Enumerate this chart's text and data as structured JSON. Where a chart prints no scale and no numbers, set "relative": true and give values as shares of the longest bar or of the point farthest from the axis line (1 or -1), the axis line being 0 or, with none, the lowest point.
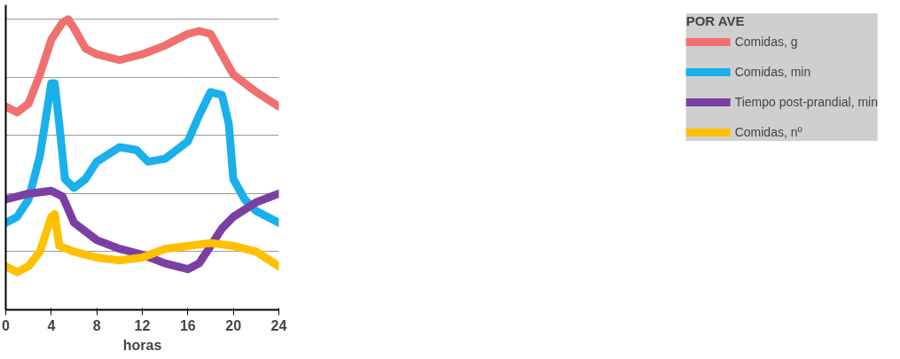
{
  "chart_data": {
    "type": "line",
    "relative": true,
    "legend_title": "POR AVE",
    "xlabel": "horas",
    "x": [
      0,
      1,
      2,
      3,
      4,
      5,
      5.5,
      6,
      7,
      8,
      10,
      12,
      14,
      16,
      17,
      18,
      19,
      20,
      22,
      24
    ],
    "xlim": [
      0,
      24
    ],
    "xticks": [
      0,
      4,
      8,
      12,
      16,
      20,
      24
    ],
    "grid": "y",
    "legend": "right",
    "line_style": "solid",
    "marker": "none",
    "series": [
      {
        "name": "Comidas, g",
        "color": "#f07070",
        "values": [
          0.7,
          0.68,
          0.71,
          0.81,
          0.93,
          0.99,
          1.0,
          0.97,
          0.9,
          0.88,
          0.86,
          0.88,
          0.91,
          0.95,
          0.96,
          0.95,
          0.88,
          0.81,
          0.75,
          0.7
        ]
      },
      {
        "name": "Comidas, min",
        "color": "#1ab0ec",
        "x": [
          0,
          1,
          2,
          3,
          4,
          4.3,
          4.7,
          5.2,
          6,
          7,
          8,
          10,
          11.5,
          12.5,
          14,
          16,
          17,
          18,
          19,
          19.6,
          20,
          21,
          22,
          24
        ],
        "values": [
          0.3,
          0.32,
          0.38,
          0.53,
          0.78,
          0.78,
          0.64,
          0.45,
          0.42,
          0.45,
          0.51,
          0.56,
          0.55,
          0.51,
          0.52,
          0.58,
          0.67,
          0.75,
          0.74,
          0.64,
          0.45,
          0.38,
          0.34,
          0.3
        ]
      },
      {
        "name": "Tiempo post-prandial, min",
        "color": "#7b3fa3",
        "x": [
          0,
          2,
          4,
          5,
          6,
          8,
          10,
          12,
          14,
          16,
          17,
          18,
          19,
          20,
          22,
          24
        ],
        "values": [
          0.38,
          0.4,
          0.41,
          0.39,
          0.3,
          0.24,
          0.21,
          0.19,
          0.16,
          0.14,
          0.16,
          0.22,
          0.28,
          0.32,
          0.37,
          0.4
        ]
      },
      {
        "name": "Comidas, nº",
        "color": "#ffc000",
        "x": [
          0,
          1,
          2,
          3,
          4,
          4.3,
          4.7,
          6,
          8,
          10,
          12,
          14,
          16,
          18,
          20,
          22,
          24
        ],
        "values": [
          0.15,
          0.13,
          0.15,
          0.2,
          0.32,
          0.33,
          0.22,
          0.2,
          0.18,
          0.17,
          0.18,
          0.21,
          0.22,
          0.23,
          0.22,
          0.2,
          0.15
        ]
      }
    ]
  }
}
